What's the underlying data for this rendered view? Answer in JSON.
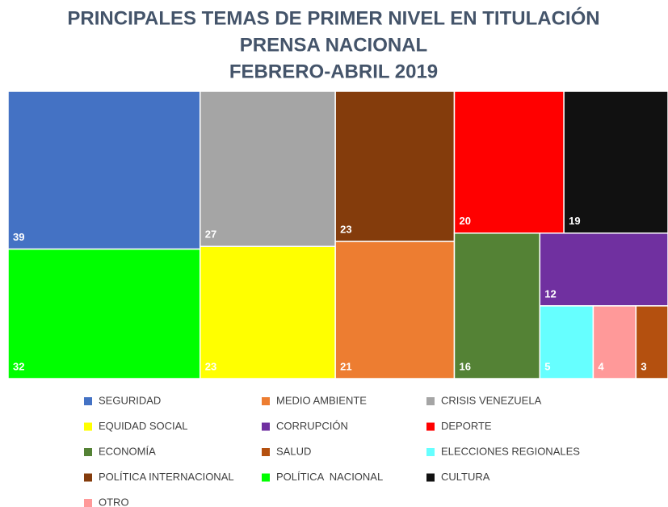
{
  "chart_data": {
    "type": "treemap",
    "title": [
      "PRINCIPALES TEMAS DE PRIMER NIVEL EN TITULACIÓN",
      "PRENSA NACIONAL",
      "FEBRERO-ABRIL 2019"
    ],
    "series": [
      {
        "name": "SEGURIDAD",
        "color": "#4472c4",
        "value": 39
      },
      {
        "name": "MEDIO AMBIENTE",
        "color": "#ed7d31",
        "value": 21
      },
      {
        "name": "CRISIS VENEZUELA",
        "color": "#a5a5a5",
        "value": 27
      },
      {
        "name": "EQUIDAD SOCIAL",
        "color": "#ffff00",
        "value": 23
      },
      {
        "name": "CORRUPCIÓN",
        "color": "#7030a0",
        "value": 12
      },
      {
        "name": "DEPORTE",
        "color": "#ff0000",
        "value": 20
      },
      {
        "name": "ECONOMÍA",
        "color": "#548235",
        "value": 16
      },
      {
        "name": "SALUD",
        "color": "#b4500f",
        "value": 3
      },
      {
        "name": "ELECCIONES REGIONALES",
        "color": "#66ffff",
        "value": 5
      },
      {
        "name": "POLÍTICA INTERNACIONAL",
        "color": "#843c0c",
        "value": 23
      },
      {
        "name": "POLÍTICA  NACIONAL",
        "color": "#00ff00",
        "value": 32
      },
      {
        "name": "CULTURA",
        "color": "#111111",
        "value": 19
      },
      {
        "name": "OTRO",
        "color": "#ff9999",
        "value": 4
      }
    ]
  }
}
